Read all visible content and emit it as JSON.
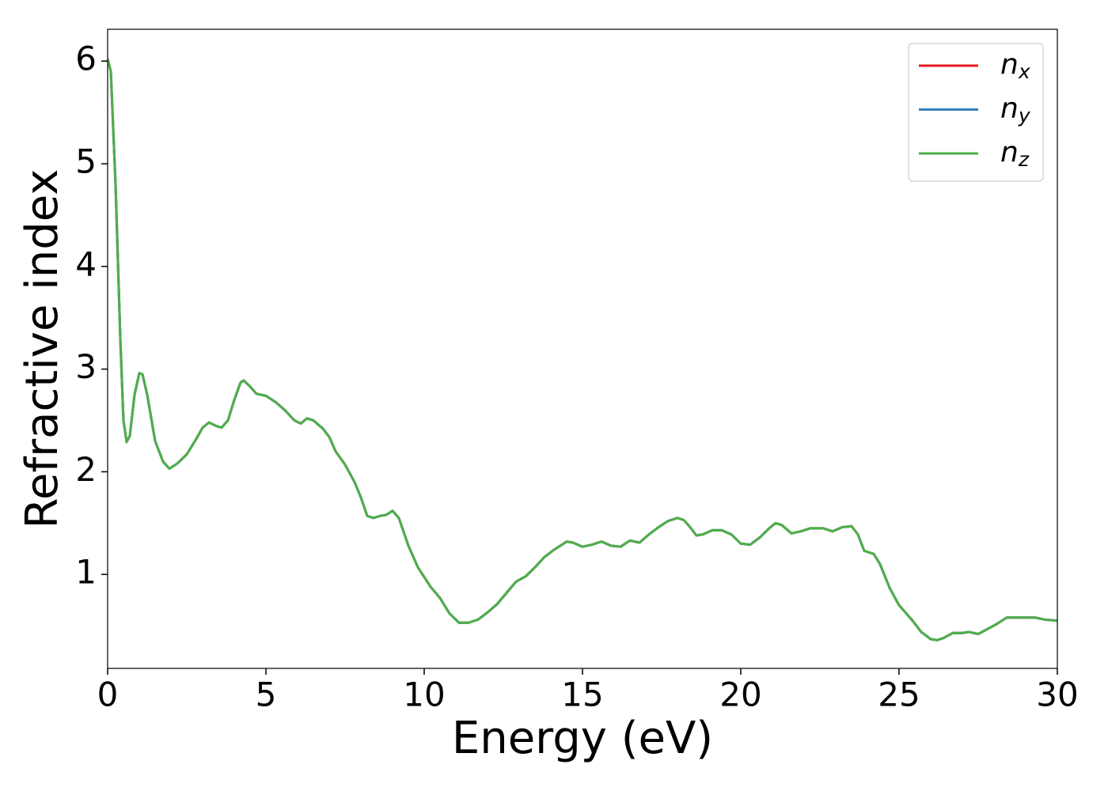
{
  "chart_data": {
    "type": "line",
    "x_label": "Energy (eV)",
    "y_label": "Refractive index",
    "x": [
      0,
      0.1,
      0.25,
      0.4,
      0.5,
      0.6,
      0.7,
      0.85,
      1.0,
      1.1,
      1.25,
      1.5,
      1.75,
      1.95,
      2.2,
      2.5,
      2.8,
      3.0,
      3.2,
      3.4,
      3.6,
      3.8,
      4.0,
      4.2,
      4.3,
      4.5,
      4.7,
      5.0,
      5.3,
      5.6,
      5.9,
      6.1,
      6.3,
      6.5,
      6.8,
      7.0,
      7.2,
      7.5,
      7.8,
      8.0,
      8.2,
      8.4,
      8.6,
      8.8,
      9.0,
      9.2,
      9.5,
      9.8,
      10.2,
      10.5,
      10.8,
      11.1,
      11.4,
      11.7,
      12.0,
      12.3,
      12.6,
      12.9,
      13.2,
      13.5,
      13.8,
      14.1,
      14.5,
      14.7,
      15.0,
      15.3,
      15.6,
      15.9,
      16.2,
      16.5,
      16.8,
      17.1,
      17.4,
      17.7,
      18.0,
      18.2,
      18.4,
      18.6,
      18.8,
      19.1,
      19.4,
      19.7,
      20.0,
      20.3,
      20.6,
      20.9,
      21.1,
      21.3,
      21.6,
      21.9,
      22.2,
      22.6,
      22.9,
      23.2,
      23.5,
      23.7,
      23.9,
      24.2,
      24.4,
      24.7,
      25.0,
      25.4,
      25.7,
      26.0,
      26.2,
      26.4,
      26.7,
      27.0,
      27.2,
      27.5,
      27.8,
      28.1,
      28.4,
      28.7,
      29.0,
      29.3,
      29.6,
      30.0
    ],
    "series": [
      {
        "name": "n_x",
        "color": "#e41a1c",
        "values": [
          6.02,
          5.9,
          4.8,
          3.3,
          2.5,
          2.29,
          2.35,
          2.75,
          2.96,
          2.95,
          2.75,
          2.3,
          2.1,
          2.03,
          2.08,
          2.17,
          2.32,
          2.43,
          2.48,
          2.45,
          2.43,
          2.5,
          2.7,
          2.87,
          2.89,
          2.83,
          2.76,
          2.74,
          2.68,
          2.6,
          2.5,
          2.47,
          2.52,
          2.5,
          2.42,
          2.34,
          2.2,
          2.07,
          1.9,
          1.75,
          1.57,
          1.55,
          1.57,
          1.58,
          1.62,
          1.55,
          1.28,
          1.07,
          0.88,
          0.77,
          0.62,
          0.53,
          0.53,
          0.56,
          0.63,
          0.71,
          0.82,
          0.93,
          0.98,
          1.07,
          1.17,
          1.24,
          1.32,
          1.31,
          1.27,
          1.29,
          1.32,
          1.28,
          1.27,
          1.33,
          1.31,
          1.39,
          1.46,
          1.52,
          1.55,
          1.53,
          1.46,
          1.38,
          1.39,
          1.43,
          1.43,
          1.39,
          1.3,
          1.29,
          1.36,
          1.45,
          1.5,
          1.48,
          1.4,
          1.42,
          1.45,
          1.45,
          1.42,
          1.46,
          1.47,
          1.39,
          1.23,
          1.2,
          1.1,
          0.87,
          0.7,
          0.56,
          0.44,
          0.37,
          0.36,
          0.38,
          0.43,
          0.43,
          0.44,
          0.42,
          0.47,
          0.52,
          0.58,
          0.58,
          0.58,
          0.58,
          0.56,
          0.55
        ]
      },
      {
        "name": "n_y",
        "color": "#377eb8",
        "values": [
          6.02,
          5.9,
          4.8,
          3.3,
          2.5,
          2.29,
          2.35,
          2.75,
          2.96,
          2.95,
          2.75,
          2.3,
          2.1,
          2.03,
          2.08,
          2.17,
          2.32,
          2.43,
          2.48,
          2.45,
          2.43,
          2.5,
          2.7,
          2.87,
          2.89,
          2.83,
          2.76,
          2.74,
          2.68,
          2.6,
          2.5,
          2.47,
          2.52,
          2.5,
          2.42,
          2.34,
          2.2,
          2.07,
          1.9,
          1.75,
          1.57,
          1.55,
          1.57,
          1.58,
          1.62,
          1.55,
          1.28,
          1.07,
          0.88,
          0.77,
          0.62,
          0.53,
          0.53,
          0.56,
          0.63,
          0.71,
          0.82,
          0.93,
          0.98,
          1.07,
          1.17,
          1.24,
          1.32,
          1.31,
          1.27,
          1.29,
          1.32,
          1.28,
          1.27,
          1.33,
          1.31,
          1.39,
          1.46,
          1.52,
          1.55,
          1.53,
          1.46,
          1.38,
          1.39,
          1.43,
          1.43,
          1.39,
          1.3,
          1.29,
          1.36,
          1.45,
          1.5,
          1.48,
          1.4,
          1.42,
          1.45,
          1.45,
          1.42,
          1.46,
          1.47,
          1.39,
          1.23,
          1.2,
          1.1,
          0.87,
          0.7,
          0.56,
          0.44,
          0.37,
          0.36,
          0.38,
          0.43,
          0.43,
          0.44,
          0.42,
          0.47,
          0.52,
          0.58,
          0.58,
          0.58,
          0.58,
          0.56,
          0.55
        ]
      },
      {
        "name": "n_z",
        "color": "#4daf4a",
        "values": [
          6.02,
          5.9,
          4.8,
          3.3,
          2.5,
          2.29,
          2.35,
          2.75,
          2.96,
          2.95,
          2.75,
          2.3,
          2.1,
          2.03,
          2.08,
          2.17,
          2.32,
          2.43,
          2.48,
          2.45,
          2.43,
          2.5,
          2.7,
          2.87,
          2.89,
          2.83,
          2.76,
          2.74,
          2.68,
          2.6,
          2.5,
          2.47,
          2.52,
          2.5,
          2.42,
          2.34,
          2.2,
          2.07,
          1.9,
          1.75,
          1.57,
          1.55,
          1.57,
          1.58,
          1.62,
          1.55,
          1.28,
          1.07,
          0.88,
          0.77,
          0.62,
          0.53,
          0.53,
          0.56,
          0.63,
          0.71,
          0.82,
          0.93,
          0.98,
          1.07,
          1.17,
          1.24,
          1.32,
          1.31,
          1.27,
          1.29,
          1.32,
          1.28,
          1.27,
          1.33,
          1.31,
          1.39,
          1.46,
          1.52,
          1.55,
          1.53,
          1.46,
          1.38,
          1.39,
          1.43,
          1.43,
          1.39,
          1.3,
          1.29,
          1.36,
          1.45,
          1.5,
          1.48,
          1.4,
          1.42,
          1.45,
          1.45,
          1.42,
          1.46,
          1.47,
          1.39,
          1.23,
          1.2,
          1.1,
          0.87,
          0.7,
          0.56,
          0.44,
          0.37,
          0.36,
          0.38,
          0.43,
          0.43,
          0.44,
          0.42,
          0.47,
          0.52,
          0.58,
          0.58,
          0.58,
          0.58,
          0.56,
          0.55
        ]
      }
    ],
    "xlim": [
      0,
      30
    ],
    "xticks": [
      0,
      5,
      10,
      15,
      20,
      25,
      30
    ],
    "ylim": [
      0.085,
      6.31
    ],
    "yticks": [
      1,
      2,
      3,
      4,
      5,
      6
    ],
    "legend": "upper right",
    "grid": false
  }
}
